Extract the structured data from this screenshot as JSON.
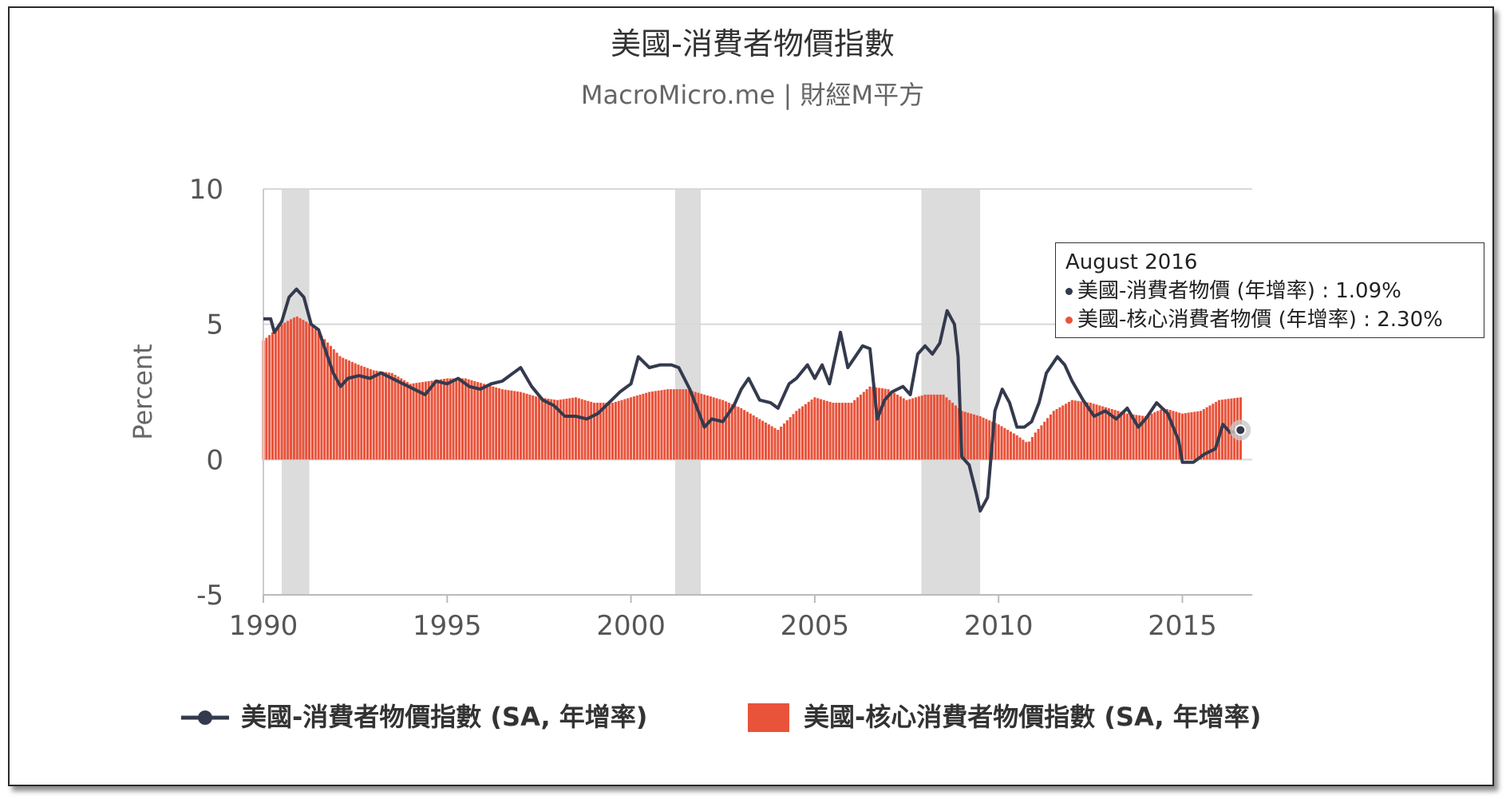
{
  "chart_data": {
    "type": "bar",
    "title": "美國-消費者物價指數",
    "subtitle": "MacroMicro.me | 財經M平方",
    "ylabel": "Percent",
    "xlabel": "",
    "ylim": [
      -5,
      10
    ],
    "xlim": [
      1990,
      2016.9
    ],
    "yticks": [
      10,
      5,
      0,
      -5
    ],
    "xticks": [
      1990,
      1995,
      2000,
      2005,
      2010,
      2015
    ],
    "grid": true,
    "legend_position": "bottom",
    "recession_shading": [
      [
        1990.5,
        1991.25
      ],
      [
        2001.2,
        2001.9
      ],
      [
        2007.9,
        2009.5
      ]
    ],
    "series": [
      {
        "name": "美國-消費者物價指數 (SA, 年增率)",
        "type": "line",
        "color": "#343a4d",
        "points": [
          [
            1990.0,
            5.2
          ],
          [
            1990.2,
            5.2
          ],
          [
            1990.3,
            4.7
          ],
          [
            1990.5,
            5.1
          ],
          [
            1990.7,
            6.0
          ],
          [
            1990.9,
            6.3
          ],
          [
            1991.1,
            6.0
          ],
          [
            1991.3,
            5.0
          ],
          [
            1991.5,
            4.8
          ],
          [
            1991.7,
            4.0
          ],
          [
            1991.9,
            3.2
          ],
          [
            1992.1,
            2.7
          ],
          [
            1992.3,
            3.0
          ],
          [
            1992.6,
            3.1
          ],
          [
            1992.9,
            3.0
          ],
          [
            1993.2,
            3.2
          ],
          [
            1993.5,
            3.0
          ],
          [
            1993.8,
            2.8
          ],
          [
            1994.1,
            2.6
          ],
          [
            1994.4,
            2.4
          ],
          [
            1994.7,
            2.9
          ],
          [
            1995.0,
            2.8
          ],
          [
            1995.3,
            3.0
          ],
          [
            1995.6,
            2.7
          ],
          [
            1995.9,
            2.6
          ],
          [
            1996.2,
            2.8
          ],
          [
            1996.5,
            2.9
          ],
          [
            1996.8,
            3.2
          ],
          [
            1997.0,
            3.4
          ],
          [
            1997.3,
            2.7
          ],
          [
            1997.6,
            2.2
          ],
          [
            1997.9,
            2.0
          ],
          [
            1998.2,
            1.6
          ],
          [
            1998.5,
            1.6
          ],
          [
            1998.8,
            1.5
          ],
          [
            1999.1,
            1.7
          ],
          [
            1999.4,
            2.1
          ],
          [
            1999.7,
            2.5
          ],
          [
            2000.0,
            2.8
          ],
          [
            2000.2,
            3.8
          ],
          [
            2000.5,
            3.4
          ],
          [
            2000.8,
            3.5
          ],
          [
            2001.1,
            3.5
          ],
          [
            2001.3,
            3.4
          ],
          [
            2001.6,
            2.6
          ],
          [
            2001.8,
            1.9
          ],
          [
            2002.0,
            1.2
          ],
          [
            2002.2,
            1.5
          ],
          [
            2002.5,
            1.4
          ],
          [
            2002.8,
            2.0
          ],
          [
            2003.0,
            2.6
          ],
          [
            2003.2,
            3.0
          ],
          [
            2003.5,
            2.2
          ],
          [
            2003.8,
            2.1
          ],
          [
            2004.0,
            1.9
          ],
          [
            2004.3,
            2.8
          ],
          [
            2004.5,
            3.0
          ],
          [
            2004.8,
            3.5
          ],
          [
            2005.0,
            3.0
          ],
          [
            2005.2,
            3.5
          ],
          [
            2005.4,
            2.8
          ],
          [
            2005.7,
            4.7
          ],
          [
            2005.9,
            3.4
          ],
          [
            2006.1,
            3.8
          ],
          [
            2006.3,
            4.2
          ],
          [
            2006.5,
            4.1
          ],
          [
            2006.7,
            1.5
          ],
          [
            2006.9,
            2.2
          ],
          [
            2007.1,
            2.5
          ],
          [
            2007.4,
            2.7
          ],
          [
            2007.6,
            2.4
          ],
          [
            2007.8,
            3.9
          ],
          [
            2008.0,
            4.2
          ],
          [
            2008.2,
            3.9
          ],
          [
            2008.4,
            4.3
          ],
          [
            2008.6,
            5.5
          ],
          [
            2008.8,
            5.0
          ],
          [
            2008.9,
            3.8
          ],
          [
            2009.0,
            0.1
          ],
          [
            2009.2,
            -0.2
          ],
          [
            2009.4,
            -1.3
          ],
          [
            2009.5,
            -1.9
          ],
          [
            2009.7,
            -1.4
          ],
          [
            2009.9,
            1.8
          ],
          [
            2010.1,
            2.6
          ],
          [
            2010.3,
            2.1
          ],
          [
            2010.5,
            1.2
          ],
          [
            2010.7,
            1.2
          ],
          [
            2010.9,
            1.4
          ],
          [
            2011.1,
            2.1
          ],
          [
            2011.3,
            3.2
          ],
          [
            2011.6,
            3.8
          ],
          [
            2011.8,
            3.5
          ],
          [
            2012.0,
            2.9
          ],
          [
            2012.3,
            2.2
          ],
          [
            2012.6,
            1.6
          ],
          [
            2012.9,
            1.8
          ],
          [
            2013.2,
            1.5
          ],
          [
            2013.5,
            1.9
          ],
          [
            2013.8,
            1.2
          ],
          [
            2014.0,
            1.5
          ],
          [
            2014.3,
            2.1
          ],
          [
            2014.6,
            1.7
          ],
          [
            2014.9,
            0.7
          ],
          [
            2015.0,
            -0.1
          ],
          [
            2015.3,
            -0.1
          ],
          [
            2015.6,
            0.2
          ],
          [
            2015.9,
            0.4
          ],
          [
            2016.1,
            1.3
          ],
          [
            2016.3,
            1.0
          ],
          [
            2016.58,
            1.09
          ]
        ]
      },
      {
        "name": "美國-核心消費者物價指數 (SA, 年增率)",
        "type": "bar",
        "color": "#e8533a",
        "points": [
          [
            1990.0,
            4.4
          ],
          [
            1990.5,
            5.0
          ],
          [
            1990.9,
            5.3
          ],
          [
            1991.3,
            5.0
          ],
          [
            1991.7,
            4.4
          ],
          [
            1992.1,
            3.8
          ],
          [
            1992.6,
            3.5
          ],
          [
            1993.0,
            3.3
          ],
          [
            1993.5,
            3.2
          ],
          [
            1994.0,
            2.8
          ],
          [
            1994.5,
            2.9
          ],
          [
            1995.0,
            3.0
          ],
          [
            1995.5,
            3.0
          ],
          [
            1996.0,
            2.8
          ],
          [
            1996.5,
            2.6
          ],
          [
            1997.0,
            2.5
          ],
          [
            1997.5,
            2.3
          ],
          [
            1998.0,
            2.2
          ],
          [
            1998.5,
            2.3
          ],
          [
            1999.0,
            2.1
          ],
          [
            1999.5,
            2.1
          ],
          [
            2000.0,
            2.3
          ],
          [
            2000.5,
            2.5
          ],
          [
            2001.0,
            2.6
          ],
          [
            2001.5,
            2.6
          ],
          [
            2002.0,
            2.4
          ],
          [
            2002.5,
            2.2
          ],
          [
            2003.0,
            1.9
          ],
          [
            2003.5,
            1.5
          ],
          [
            2004.0,
            1.1
          ],
          [
            2004.5,
            1.8
          ],
          [
            2005.0,
            2.3
          ],
          [
            2005.5,
            2.1
          ],
          [
            2006.0,
            2.1
          ],
          [
            2006.5,
            2.7
          ],
          [
            2007.0,
            2.6
          ],
          [
            2007.5,
            2.2
          ],
          [
            2008.0,
            2.4
          ],
          [
            2008.5,
            2.4
          ],
          [
            2009.0,
            1.8
          ],
          [
            2009.5,
            1.6
          ],
          [
            2010.0,
            1.3
          ],
          [
            2010.5,
            0.9
          ],
          [
            2010.8,
            0.6
          ],
          [
            2011.0,
            1.0
          ],
          [
            2011.5,
            1.8
          ],
          [
            2012.0,
            2.2
          ],
          [
            2012.5,
            2.1
          ],
          [
            2013.0,
            1.9
          ],
          [
            2013.5,
            1.7
          ],
          [
            2014.0,
            1.6
          ],
          [
            2014.5,
            1.9
          ],
          [
            2015.0,
            1.7
          ],
          [
            2015.5,
            1.8
          ],
          [
            2016.0,
            2.2
          ],
          [
            2016.58,
            2.3
          ]
        ]
      }
    ],
    "tooltip": {
      "title": "August 2016",
      "rows": [
        {
          "label": "美國-消費者物價 (年增率)",
          "value": "1.09%"
        },
        {
          "label": "美國-核心消費者物價 (年增率)",
          "value": "2.30%"
        }
      ]
    }
  }
}
